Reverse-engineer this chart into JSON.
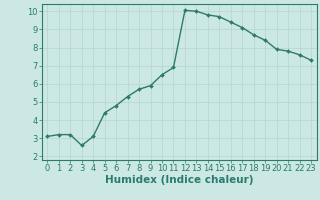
{
  "x": [
    0,
    1,
    2,
    3,
    4,
    5,
    6,
    7,
    8,
    9,
    10,
    11,
    12,
    13,
    14,
    15,
    16,
    17,
    18,
    19,
    20,
    21,
    22,
    23
  ],
  "y": [
    3.1,
    3.2,
    3.2,
    2.6,
    3.1,
    4.4,
    4.8,
    5.3,
    5.7,
    5.9,
    6.5,
    6.9,
    10.05,
    10.0,
    9.8,
    9.7,
    9.4,
    9.1,
    8.7,
    8.4,
    7.9,
    7.8,
    7.6,
    7.3
  ],
  "line_color": "#2d7a6e",
  "marker": "D",
  "marker_size": 2.0,
  "linewidth": 1.0,
  "bg_color": "#cce8e5",
  "grid_color": "#b8d8d5",
  "xlabel": "Humidex (Indice chaleur)",
  "xlim": [
    -0.5,
    23.5
  ],
  "ylim": [
    1.8,
    10.4
  ],
  "yticks": [
    2,
    3,
    4,
    5,
    6,
    7,
    8,
    9,
    10
  ],
  "xticks": [
    0,
    1,
    2,
    3,
    4,
    5,
    6,
    7,
    8,
    9,
    10,
    11,
    12,
    13,
    14,
    15,
    16,
    17,
    18,
    19,
    20,
    21,
    22,
    23
  ],
  "tick_label_fontsize": 6.0,
  "xlabel_fontsize": 7.5,
  "axis_color": "#2d7a6e",
  "tick_color": "#2d7a6e",
  "spine_color": "#2d7a6e"
}
